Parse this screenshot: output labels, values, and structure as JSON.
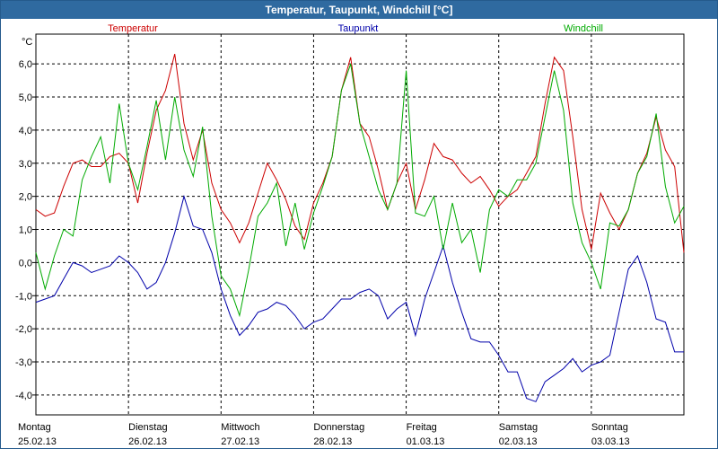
{
  "window": {
    "title": "Temperatur, Taupunkt, Windchill [°C]"
  },
  "colors": {
    "temperatur": "#cc0000",
    "taupunkt": "#0000aa",
    "windchill": "#00aa00",
    "title_bg": "#2f6aa0",
    "grid": "#000000"
  },
  "chart_data": {
    "type": "line",
    "title": "Temperatur, Taupunkt, Windchill [°C]",
    "ylabel": "°C",
    "ylim": [
      -4.6,
      6.9
    ],
    "yticks": [
      -4,
      -3,
      -2,
      -1,
      0,
      1,
      2,
      3,
      4,
      5,
      6
    ],
    "ytick_labels": [
      "-4,0",
      "-3,0",
      "-2,0",
      "-1,0",
      "0,0",
      "1,0",
      "2,0",
      "3,0",
      "4,0",
      "5,0",
      "6,0"
    ],
    "xlim": [
      0,
      7
    ],
    "x_unit": "days since Montag 25.02.13 00:00",
    "day_labels": [
      {
        "weekday": "Montag",
        "date": "25.02.13"
      },
      {
        "weekday": "Dienstag",
        "date": "26.02.13"
      },
      {
        "weekday": "Mittwoch",
        "date": "27.02.13"
      },
      {
        "weekday": "Donnerstag",
        "date": "28.02.13"
      },
      {
        "weekday": "Freitag",
        "date": "01.03.13"
      },
      {
        "weekday": "Samstag",
        "date": "02.03.13"
      },
      {
        "weekday": "Sonntag",
        "date": "03.03.13"
      }
    ],
    "series": [
      {
        "name": "Temperatur",
        "color": "#cc0000",
        "x": [
          0,
          0.1,
          0.2,
          0.3,
          0.4,
          0.5,
          0.6,
          0.7,
          0.8,
          0.9,
          1.0,
          1.1,
          1.2,
          1.3,
          1.4,
          1.5,
          1.6,
          1.7,
          1.8,
          1.9,
          2.0,
          2.1,
          2.2,
          2.3,
          2.4,
          2.5,
          2.6,
          2.7,
          2.8,
          2.9,
          3.0,
          3.1,
          3.2,
          3.3,
          3.4,
          3.5,
          3.6,
          3.7,
          3.8,
          3.9,
          4.0,
          4.1,
          4.2,
          4.3,
          4.4,
          4.5,
          4.6,
          4.7,
          4.8,
          4.9,
          5.0,
          5.1,
          5.2,
          5.3,
          5.4,
          5.5,
          5.6,
          5.7,
          5.8,
          5.9,
          6.0,
          6.1,
          6.2,
          6.3,
          6.4,
          6.5,
          6.6,
          6.7,
          6.8,
          6.9,
          7.0
        ],
        "values": [
          1.6,
          1.4,
          1.5,
          2.3,
          3.0,
          3.1,
          2.9,
          2.9,
          3.2,
          3.3,
          3.0,
          1.8,
          3.3,
          4.6,
          5.2,
          6.3,
          4.2,
          3.1,
          4.0,
          2.4,
          1.6,
          1.2,
          0.6,
          1.2,
          2.1,
          3.0,
          2.5,
          1.9,
          1.1,
          0.7,
          1.8,
          2.4,
          3.2,
          5.2,
          6.2,
          4.2,
          3.8,
          2.8,
          1.6,
          2.4,
          3.0,
          1.6,
          2.5,
          3.6,
          3.2,
          3.1,
          2.7,
          2.4,
          2.6,
          2.2,
          1.7,
          2.0,
          2.2,
          2.7,
          3.2,
          4.8,
          6.2,
          5.8,
          3.8,
          1.6,
          0.4,
          2.1,
          1.5,
          1.0,
          1.6,
          2.7,
          3.3,
          4.4,
          3.4,
          2.9,
          0.3
        ]
      },
      {
        "name": "Taupunkt",
        "color": "#0000aa",
        "x": [
          0,
          0.1,
          0.2,
          0.3,
          0.4,
          0.5,
          0.6,
          0.7,
          0.8,
          0.9,
          1.0,
          1.1,
          1.2,
          1.3,
          1.4,
          1.5,
          1.6,
          1.7,
          1.8,
          1.9,
          2.0,
          2.1,
          2.2,
          2.3,
          2.4,
          2.5,
          2.6,
          2.7,
          2.8,
          2.9,
          3.0,
          3.1,
          3.2,
          3.3,
          3.4,
          3.5,
          3.6,
          3.7,
          3.8,
          3.9,
          4.0,
          4.1,
          4.2,
          4.3,
          4.4,
          4.5,
          4.6,
          4.7,
          4.8,
          4.9,
          5.0,
          5.1,
          5.2,
          5.3,
          5.4,
          5.5,
          5.6,
          5.7,
          5.8,
          5.9,
          6.0,
          6.1,
          6.2,
          6.3,
          6.4,
          6.5,
          6.6,
          6.7,
          6.8,
          6.9,
          7.0
        ],
        "values": [
          -1.2,
          -1.1,
          -1.0,
          -0.5,
          0.0,
          -0.1,
          -0.3,
          -0.2,
          -0.1,
          0.2,
          0.0,
          -0.3,
          -0.8,
          -0.6,
          0.0,
          0.9,
          2.0,
          1.1,
          1.0,
          0.3,
          -0.8,
          -1.6,
          -2.2,
          -1.9,
          -1.5,
          -1.4,
          -1.2,
          -1.3,
          -1.6,
          -2.0,
          -1.8,
          -1.7,
          -1.4,
          -1.1,
          -1.1,
          -0.9,
          -0.8,
          -1.0,
          -1.7,
          -1.4,
          -1.2,
          -2.2,
          -1.1,
          -0.3,
          0.5,
          -0.6,
          -1.5,
          -2.3,
          -2.4,
          -2.4,
          -2.8,
          -3.3,
          -3.3,
          -4.1,
          -4.2,
          -3.6,
          -3.4,
          -3.2,
          -2.9,
          -3.3,
          -3.1,
          -3.0,
          -2.8,
          -1.5,
          -0.2,
          0.2,
          -0.6,
          -1.7,
          -1.8,
          -2.7,
          -2.7
        ]
      },
      {
        "name": "Windchill",
        "color": "#00aa00",
        "x": [
          0,
          0.1,
          0.2,
          0.3,
          0.4,
          0.5,
          0.6,
          0.7,
          0.8,
          0.9,
          1.0,
          1.1,
          1.2,
          1.3,
          1.4,
          1.5,
          1.6,
          1.7,
          1.8,
          1.9,
          2.0,
          2.1,
          2.2,
          2.3,
          2.4,
          2.5,
          2.6,
          2.7,
          2.8,
          2.9,
          3.0,
          3.1,
          3.2,
          3.3,
          3.4,
          3.5,
          3.6,
          3.7,
          3.8,
          3.9,
          4.0,
          4.1,
          4.2,
          4.3,
          4.4,
          4.5,
          4.6,
          4.7,
          4.8,
          4.9,
          5.0,
          5.1,
          5.2,
          5.3,
          5.4,
          5.5,
          5.6,
          5.7,
          5.8,
          5.9,
          6.0,
          6.1,
          6.2,
          6.3,
          6.4,
          6.5,
          6.6,
          6.7,
          6.8,
          6.9,
          7.0
        ],
        "values": [
          0.3,
          -0.8,
          0.2,
          1.0,
          0.8,
          2.5,
          3.2,
          3.8,
          2.4,
          4.8,
          3.0,
          2.2,
          3.5,
          4.9,
          3.1,
          5.0,
          3.4,
          2.6,
          4.1,
          1.4,
          -0.4,
          -0.8,
          -1.6,
          -0.2,
          1.4,
          1.8,
          2.4,
          0.5,
          1.8,
          0.4,
          1.5,
          2.3,
          3.2,
          5.2,
          6.0,
          4.2,
          3.2,
          2.2,
          1.6,
          2.4,
          5.8,
          1.5,
          1.4,
          2.0,
          0.4,
          1.8,
          0.6,
          1.0,
          -0.3,
          1.6,
          2.2,
          2.0,
          2.5,
          2.5,
          3.0,
          4.4,
          5.8,
          4.6,
          1.8,
          0.6,
          0.0,
          -0.8,
          1.2,
          1.1,
          1.6,
          2.7,
          3.2,
          4.5,
          2.3,
          1.2,
          1.7
        ]
      }
    ]
  }
}
